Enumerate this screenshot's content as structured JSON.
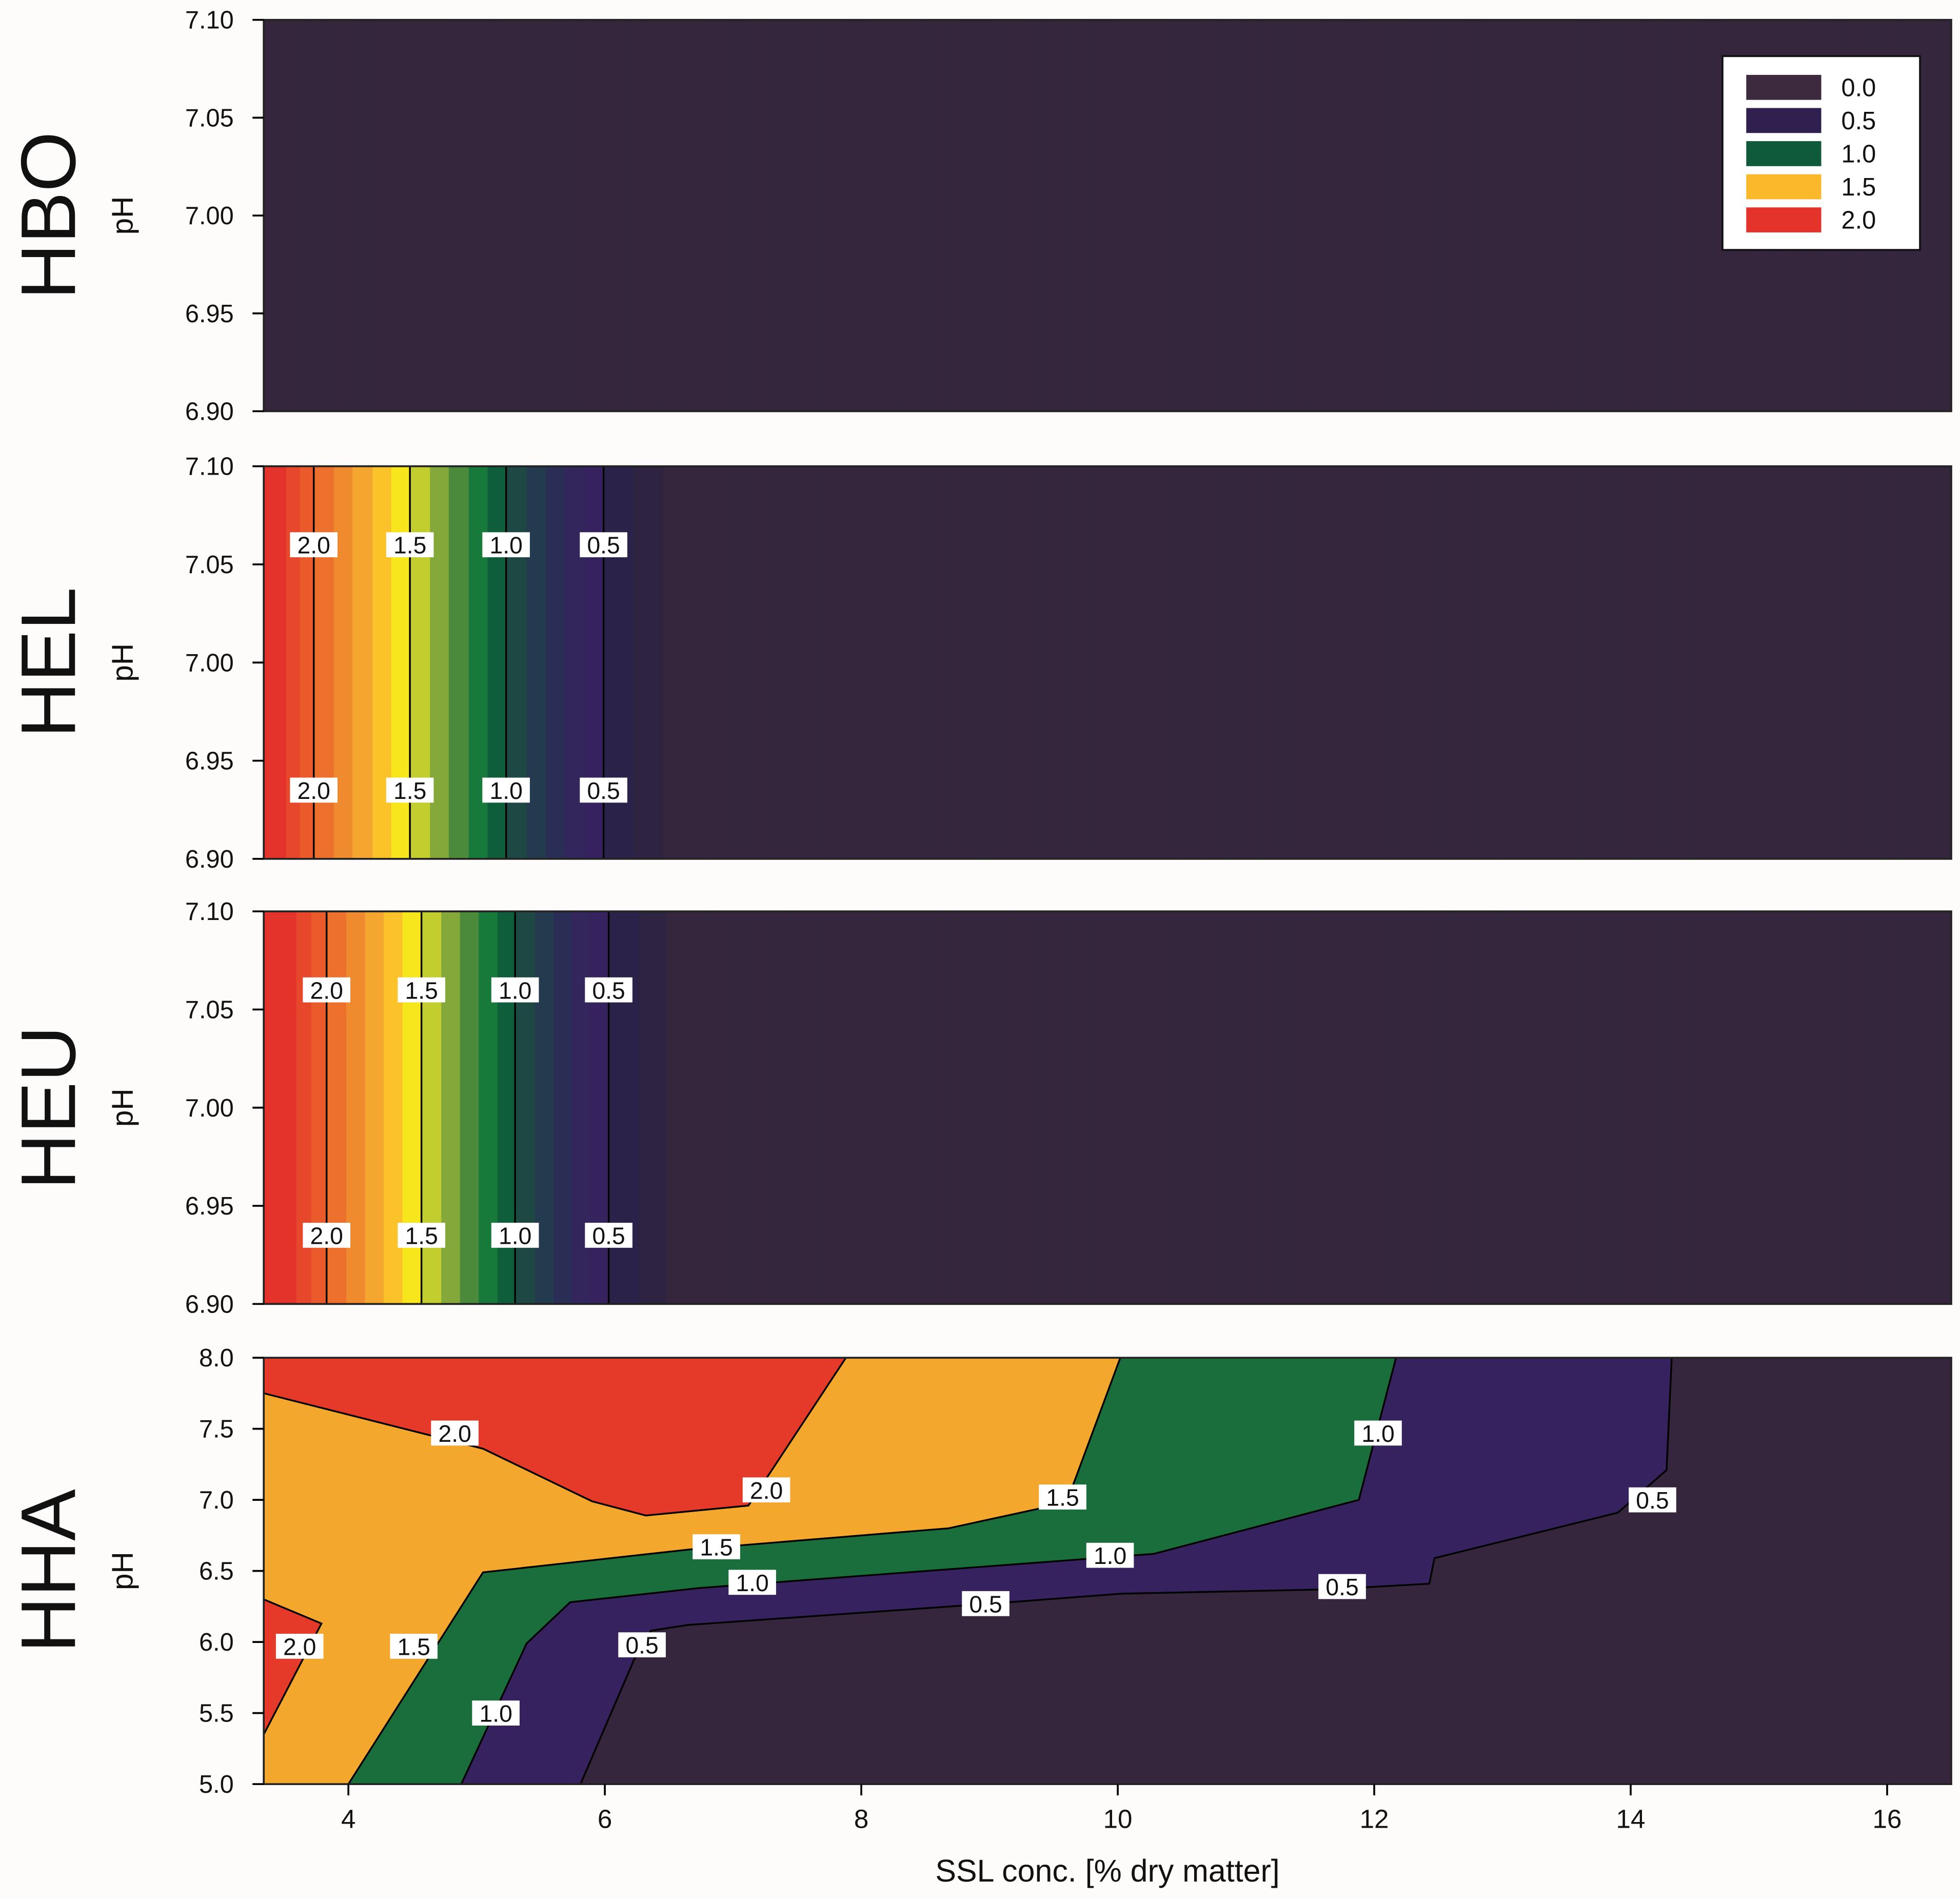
{
  "chart_data": {
    "type": "contour",
    "xlabel": "SSL conc. [% dry matter]",
    "xlim": [
      3.34,
      16.5
    ],
    "xticks": [
      "4",
      "6",
      "8",
      "10",
      "12",
      "14",
      "16"
    ],
    "legend": {
      "placement": "top-right",
      "entries": [
        {
          "label": "0.0",
          "color": "#3d2a3f"
        },
        {
          "label": "0.5",
          "color": "#2f2050"
        },
        {
          "label": "1.0",
          "color": "#0f5a3a"
        },
        {
          "label": "1.5",
          "color": "#fbb82a"
        },
        {
          "label": "2.0",
          "color": "#e3332b"
        }
      ]
    },
    "band_colors": [
      {
        "min": 0.0,
        "color": "#35263d"
      },
      {
        "min": 0.2,
        "color": "#2e2442"
      },
      {
        "min": 0.35,
        "color": "#2b2349"
      },
      {
        "min": 0.5,
        "color": "#372260"
      },
      {
        "min": 0.6,
        "color": "#32265c"
      },
      {
        "min": 0.7,
        "color": "#2a2e56"
      },
      {
        "min": 0.8,
        "color": "#243a4e"
      },
      {
        "min": 0.9,
        "color": "#1e4844"
      },
      {
        "min": 1.0,
        "color": "#0f5e3b"
      },
      {
        "min": 1.1,
        "color": "#177a3b"
      },
      {
        "min": 1.2,
        "color": "#4b8a3b"
      },
      {
        "min": 1.3,
        "color": "#84a83a"
      },
      {
        "min": 1.4,
        "color": "#c2cd2e"
      },
      {
        "min": 1.5,
        "color": "#f8e61c"
      },
      {
        "min": 1.6,
        "color": "#fbc22a"
      },
      {
        "min": 1.7,
        "color": "#f5a62e"
      },
      {
        "min": 1.8,
        "color": "#f08a2e"
      },
      {
        "min": 1.9,
        "color": "#ed712c"
      },
      {
        "min": 2.0,
        "color": "#ea5a2b"
      },
      {
        "min": 2.1,
        "color": "#e7472a"
      },
      {
        "min": 2.2,
        "color": "#e3332a"
      }
    ],
    "panels": [
      {
        "name": "HBO",
        "ylabel": "pH",
        "ylim": [
          6.9,
          7.1
        ],
        "yticks": [
          "7.10",
          "7.05",
          "7.00",
          "6.95",
          "6.90"
        ],
        "profile": [
          [
            3.34,
            0.0
          ],
          [
            16.5,
            0.0
          ]
        ],
        "contours": [],
        "labels": []
      },
      {
        "name": "HEL",
        "ylabel": "pH",
        "ylim": [
          6.9,
          7.1
        ],
        "yticks": [
          "7.10",
          "7.05",
          "7.00",
          "6.95",
          "6.90"
        ],
        "profile": [
          [
            3.34,
            2.35
          ],
          [
            3.73,
            2.0
          ],
          [
            4.48,
            1.5
          ],
          [
            5.23,
            1.0
          ],
          [
            5.99,
            0.5
          ],
          [
            6.3,
            0.3
          ],
          [
            6.6,
            0.1
          ],
          [
            16.5,
            0.0
          ]
        ],
        "contours": [
          {
            "level": "2.0",
            "x": 3.73
          },
          {
            "level": "1.5",
            "x": 4.48
          },
          {
            "level": "1.0",
            "x": 5.23
          },
          {
            "level": "0.5",
            "x": 5.99
          }
        ],
        "label_ph": [
          7.06,
          6.935
        ]
      },
      {
        "name": "HEU",
        "ylabel": "pH",
        "ylim": [
          6.9,
          7.1
        ],
        "yticks": [
          "7.10",
          "7.05",
          "7.00",
          "6.95",
          "6.90"
        ],
        "profile": [
          [
            3.34,
            2.4
          ],
          [
            3.83,
            2.0
          ],
          [
            4.57,
            1.5
          ],
          [
            5.3,
            1.0
          ],
          [
            6.03,
            0.5
          ],
          [
            6.33,
            0.3
          ],
          [
            6.62,
            0.1
          ],
          [
            16.5,
            0.0
          ]
        ],
        "contours": [
          {
            "level": "2.0",
            "x": 3.83
          },
          {
            "level": "1.5",
            "x": 4.57
          },
          {
            "level": "1.0",
            "x": 5.3
          },
          {
            "level": "0.5",
            "x": 6.03
          }
        ],
        "label_ph": [
          7.06,
          6.935
        ]
      },
      {
        "name": "HHA",
        "ylabel": "pH",
        "ylim": [
          5.0,
          8.0
        ],
        "yticks": [
          "8.0",
          "7.5",
          "7.0",
          "6.5",
          "6.0",
          "5.5",
          "5.0"
        ],
        "regions": [
          {
            "level": 0.5,
            "color": "#372260",
            "close": [
              [
                3.34,
                8.0
              ],
              [
                3.34,
                5.0
              ]
            ],
            "line": [
              [
                5.81,
                5.0
              ],
              [
                6.23,
                5.88
              ],
              [
                6.36,
                6.08
              ],
              [
                6.65,
                6.12
              ],
              [
                9.01,
                6.27
              ],
              [
                10.03,
                6.34
              ],
              [
                11.63,
                6.37
              ],
              [
                12.43,
                6.41
              ],
              [
                12.47,
                6.59
              ],
              [
                13.9,
                6.91
              ],
              [
                14.28,
                7.21
              ],
              [
                14.32,
                8.0
              ]
            ]
          },
          {
            "level": 1.0,
            "color": "#1a6e3b",
            "close": [
              [
                3.34,
                8.0
              ],
              [
                3.34,
                5.0
              ]
            ],
            "line": [
              [
                4.88,
                5.0
              ],
              [
                5.39,
                5.99
              ],
              [
                5.73,
                6.28
              ],
              [
                6.74,
                6.38
              ],
              [
                10.28,
                6.62
              ],
              [
                11.88,
                7.0
              ],
              [
                12.17,
                8.0
              ]
            ]
          },
          {
            "level": 1.5,
            "color": "#f3a72d",
            "close": [
              [
                3.34,
                8.0
              ],
              [
                3.34,
                5.0
              ]
            ],
            "line": [
              [
                4.0,
                5.0
              ],
              [
                5.05,
                6.49
              ],
              [
                6.65,
                6.65
              ],
              [
                8.68,
                6.8
              ],
              [
                9.6,
                6.98
              ],
              [
                10.02,
                8.0
              ]
            ]
          },
          {
            "level": 2.0,
            "color": "#e5392a",
            "close": [
              [
                3.34,
                8.0
              ]
            ],
            "line": [
              [
                3.34,
                7.75
              ],
              [
                5.05,
                7.36
              ],
              [
                5.9,
                6.99
              ],
              [
                6.32,
                6.89
              ],
              [
                7.12,
                6.96
              ],
              [
                7.88,
                8.0
              ]
            ]
          },
          {
            "level": 2.0,
            "color": "#e5392a",
            "close": [],
            "line": [
              [
                3.34,
                6.3
              ],
              [
                3.79,
                6.13
              ],
              [
                3.34,
                5.35
              ]
            ]
          }
        ],
        "labels": [
          {
            "text": "2.0",
            "x": 4.83,
            "y": 7.47
          },
          {
            "text": "2.0",
            "x": 7.26,
            "y": 7.07
          },
          {
            "text": "1.5",
            "x": 9.57,
            "y": 7.02
          },
          {
            "text": "1.0",
            "x": 12.03,
            "y": 7.47
          },
          {
            "text": "0.5",
            "x": 14.17,
            "y": 7.0
          },
          {
            "text": "1.5",
            "x": 6.87,
            "y": 6.67
          },
          {
            "text": "1.0",
            "x": 9.94,
            "y": 6.61
          },
          {
            "text": "1.0",
            "x": 7.15,
            "y": 6.42
          },
          {
            "text": "0.5",
            "x": 8.97,
            "y": 6.27
          },
          {
            "text": "0.5",
            "x": 11.75,
            "y": 6.39
          },
          {
            "text": "2.0",
            "x": 3.62,
            "y": 5.97
          },
          {
            "text": "1.5",
            "x": 4.51,
            "y": 5.97
          },
          {
            "text": "0.5",
            "x": 6.29,
            "y": 5.98
          },
          {
            "text": "1.0",
            "x": 5.15,
            "y": 5.5
          }
        ]
      }
    ]
  }
}
